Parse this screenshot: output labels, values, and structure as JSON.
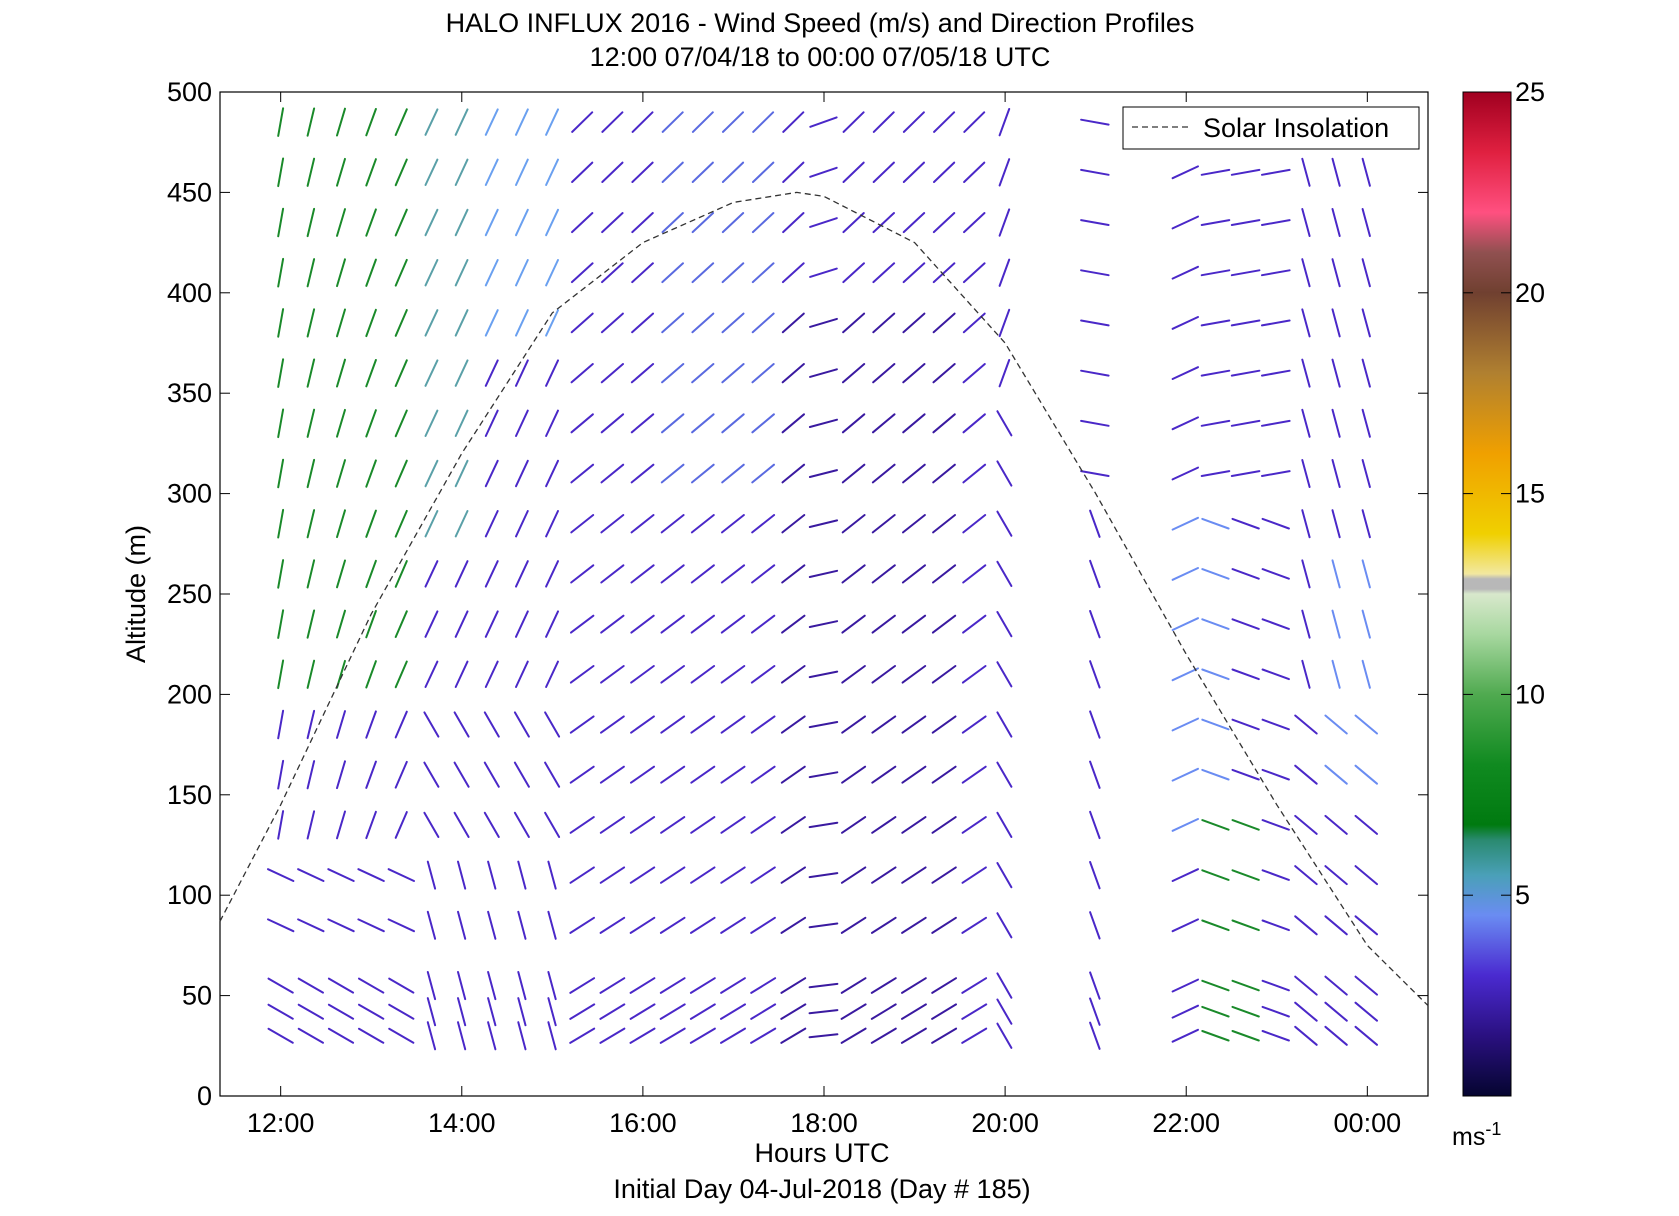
{
  "chart_data": {
    "type": "wind-profile",
    "title": "HALO INFLUX 2016 - Wind Speed (m/s) and Direction Profiles",
    "subtitle": "12:00 07/04/18 to 00:00 07/05/18  UTC",
    "xlabel": "Hours UTC",
    "ylabel": "Altitude (m)",
    "footer": "Initial Day 04-Jul-2018 (Day # 185)",
    "x_ticks": [
      "12:00",
      "14:00",
      "16:00",
      "18:00",
      "20:00",
      "22:00",
      "00:00"
    ],
    "y_ticks": [
      "0",
      "50",
      "100",
      "150",
      "200",
      "250",
      "300",
      "350",
      "400",
      "450",
      "500"
    ],
    "xlim_hours": [
      11.33,
      24.67
    ],
    "ylim": [
      0,
      500
    ],
    "legend": {
      "label": "Solar Insolation",
      "placement": "top-right"
    },
    "colorbar": {
      "ticks": [
        "5",
        "10",
        "15",
        "20",
        "25"
      ],
      "range": [
        0,
        25
      ],
      "unit_main": "ms",
      "unit_sup": "-1"
    },
    "solar_insolation": {
      "x_hours": [
        11.33,
        12,
        13,
        14,
        15,
        16,
        17,
        17.7,
        18,
        19,
        20,
        21,
        22,
        23,
        24,
        24.67
      ],
      "y_m": [
        87,
        145,
        240,
        320,
        390,
        425,
        445,
        450,
        448,
        425,
        375,
        300,
        220,
        145,
        75,
        45
      ]
    }
  }
}
